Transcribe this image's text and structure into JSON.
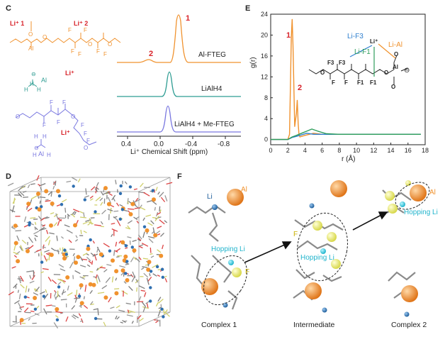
{
  "panels": {
    "C": "C",
    "D": "D",
    "E": "E",
    "F": "F"
  },
  "panel_c": {
    "struct_orange": {
      "li1": "Li⁺ 1",
      "li2": "Li⁺ 2",
      "atoms": [
        "O",
        "Al",
        "O",
        "F",
        "F",
        "O",
        "O",
        "F",
        "F",
        "F",
        "F"
      ]
    },
    "struct_cyan": {
      "li": "Li⁺",
      "al": "Al",
      "h": [
        "H",
        "H",
        "H"
      ]
    },
    "struct_purple": {
      "li": "Li⁺",
      "al": "Al",
      "atoms": [
        "O",
        "F",
        "F",
        "F",
        "F",
        "O",
        "F",
        "F",
        "F",
        "O",
        "H",
        "H",
        "H",
        "H"
      ]
    },
    "spectra": [
      {
        "name": "Al-FTEG",
        "color": "#f0922e"
      },
      {
        "name": "LiAlH4",
        "color": "#2f9d93"
      },
      {
        "name": "LiAlH4 + Me-FTEG",
        "color": "#7a78e0"
      }
    ],
    "peak_labels": [
      "1",
      "2"
    ],
    "x_ticks": [
      "0.4",
      "0.0",
      "-0.4",
      "-0.8"
    ],
    "x_label": "Li⁺ Chemical Shift (ppm)"
  },
  "chart_data": {
    "type": "line",
    "title": "",
    "xlabel": "r (Å)",
    "ylabel": "g(r)",
    "xlim": [
      0,
      18
    ],
    "ylim": [
      -1,
      24
    ],
    "x_ticks": [
      0,
      2,
      4,
      6,
      8,
      10,
      12,
      14,
      16,
      18
    ],
    "y_ticks": [
      0,
      4,
      8,
      12,
      16,
      20,
      24
    ],
    "grid": false,
    "series": [
      {
        "name": "Li-Al",
        "color": "#f0922e",
        "x": [
          0,
          2.0,
          2.2,
          2.4,
          2.5,
          2.6,
          2.8,
          3.0,
          3.1,
          3.2,
          3.3,
          3.4,
          3.6,
          4.0,
          5.0,
          6.0,
          8.0,
          10.0,
          12.0,
          14.0,
          17.5
        ],
        "y": [
          0,
          0,
          1.0,
          19.5,
          23.0,
          18.0,
          2.5,
          5.0,
          7.5,
          3.0,
          0.9,
          0.5,
          0.6,
          0.8,
          1.2,
          1.0,
          1.0,
          1.0,
          1.0,
          1.0,
          1.0
        ]
      },
      {
        "name": "Li-F3",
        "color": "#2f7fcf",
        "x": [
          0,
          2.0,
          2.5,
          3.0,
          3.6,
          4.2,
          5.0,
          6.0,
          8.0,
          10.0,
          12.0,
          17.5
        ],
        "y": [
          0,
          0,
          0.4,
          0.6,
          0.9,
          1.2,
          1.0,
          1.0,
          1.0,
          1.0,
          1.0,
          1.0
        ]
      },
      {
        "name": "Li-F1",
        "color": "#2e9d5b",
        "x": [
          0,
          2.0,
          2.5,
          3.0,
          3.6,
          4.2,
          4.8,
          5.5,
          6.5,
          8.0,
          10.0,
          12.0,
          17.5
        ],
        "y": [
          0,
          0,
          0.5,
          0.8,
          1.2,
          1.6,
          2.0,
          1.6,
          1.1,
          1.0,
          1.0,
          1.0,
          1.0
        ]
      }
    ],
    "annotations": [
      "1",
      "2"
    ]
  },
  "panel_e_inset": {
    "labels": {
      "li_f3": "Li-F3",
      "li_al": "Li-Al",
      "li_f1": "Li-F1",
      "li": "Li⁺"
    },
    "atoms": [
      "F3",
      "F3",
      "F",
      "F1",
      "F1",
      "F",
      "O",
      "O",
      "O",
      "O",
      "Al"
    ],
    "charge": "⊖"
  },
  "panel_f": {
    "labels": {
      "al_1": "Al",
      "li": "Li",
      "hopping_1": "Hopping Li",
      "f_1": "F",
      "f_2": "F",
      "hopping_2": "Hopping Li",
      "al_3": "Al",
      "hopping_3": "Hopping Li"
    },
    "captions": [
      "Complex 1",
      "Intermediate",
      "Complex 2"
    ]
  },
  "colors": {
    "orange": "#f0922e",
    "teal": "#2f9d93",
    "purple": "#7a78e0",
    "blue": "#2f7fcf",
    "green": "#2e9d5b",
    "red": "#d8232a"
  }
}
